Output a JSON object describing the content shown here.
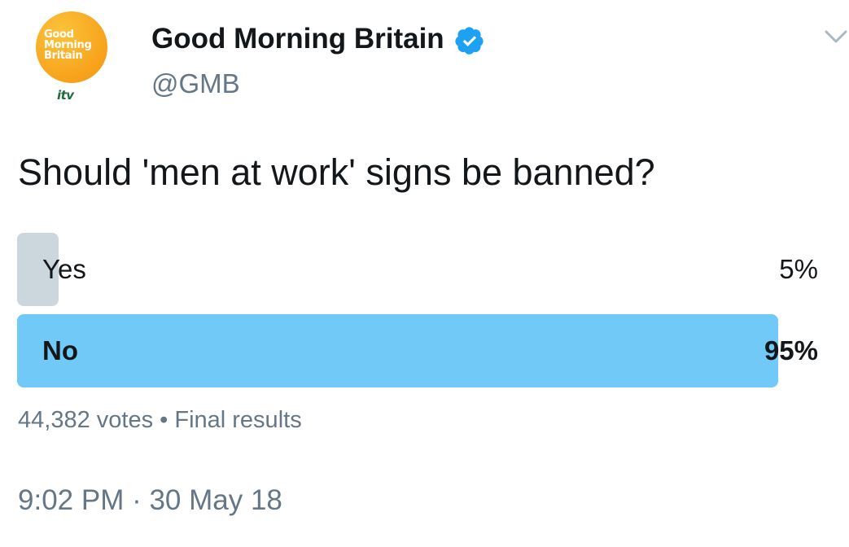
{
  "tweet": {
    "avatar": {
      "logo_lines": [
        "Good",
        "Morning",
        "Britain"
      ],
      "network": "itv",
      "brand_color": "#f7a21a"
    },
    "display_name": "Good Morning Britain",
    "verified_icon": "verified-badge-icon",
    "handle": "@GMB",
    "menu_icon": "chevron-down-icon",
    "poll": {
      "question": "Should 'men at work' signs be banned?",
      "options": [
        {
          "label": "Yes",
          "percent_text": "5%",
          "percent": 5,
          "bar_color": "#ccd6dd",
          "winner": false
        },
        {
          "label": "No",
          "percent_text": "95%",
          "percent": 95,
          "bar_color": "#71c9f8",
          "winner": true
        }
      ],
      "votes": "44,382 votes",
      "separator": "•",
      "status": "Final results"
    },
    "timestamp": "9:02 PM · 30 May 18"
  }
}
